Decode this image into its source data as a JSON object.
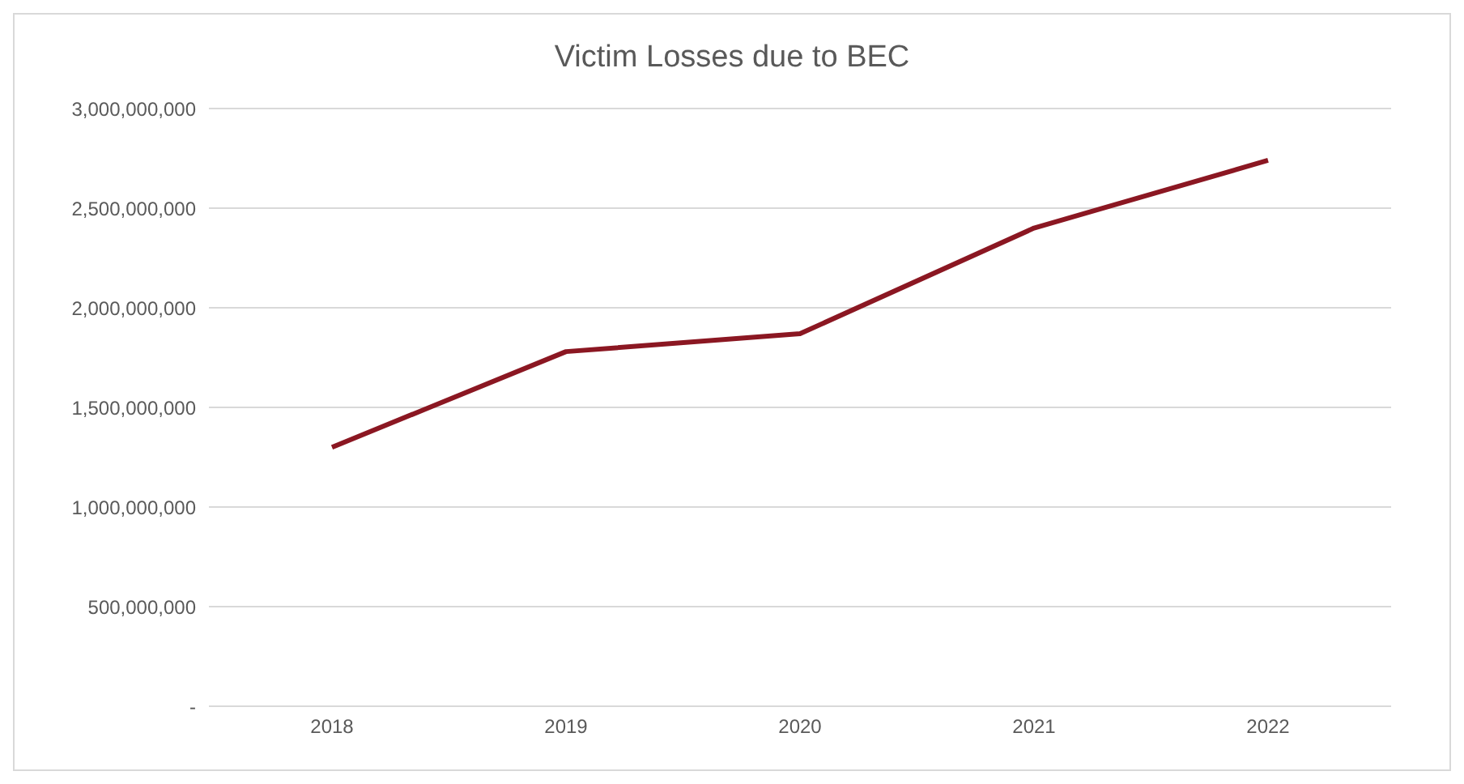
{
  "chart_data": {
    "type": "line",
    "title": "Victim Losses due to BEC",
    "categories": [
      "2018",
      "2019",
      "2020",
      "2021",
      "2022"
    ],
    "series": [
      {
        "color": "#8b1722",
        "values": [
          1300000000,
          1780000000,
          1870000000,
          2400000000,
          2740000000
        ]
      }
    ],
    "ylim": [
      0,
      3000000000
    ],
    "yticks": [
      {
        "value": 0,
        "label": "-"
      },
      {
        "value": 500000000,
        "label": "500,000,000"
      },
      {
        "value": 1000000000,
        "label": "1,000,000,000"
      },
      {
        "value": 1500000000,
        "label": "1,500,000,000"
      },
      {
        "value": 2000000000,
        "label": "2,000,000,000"
      },
      {
        "value": 2500000000,
        "label": "2,500,000,000"
      },
      {
        "value": 3000000000,
        "label": "3,000,000,000"
      }
    ],
    "grid": "y",
    "legend": false,
    "marker": "none",
    "line_style": "solid"
  }
}
